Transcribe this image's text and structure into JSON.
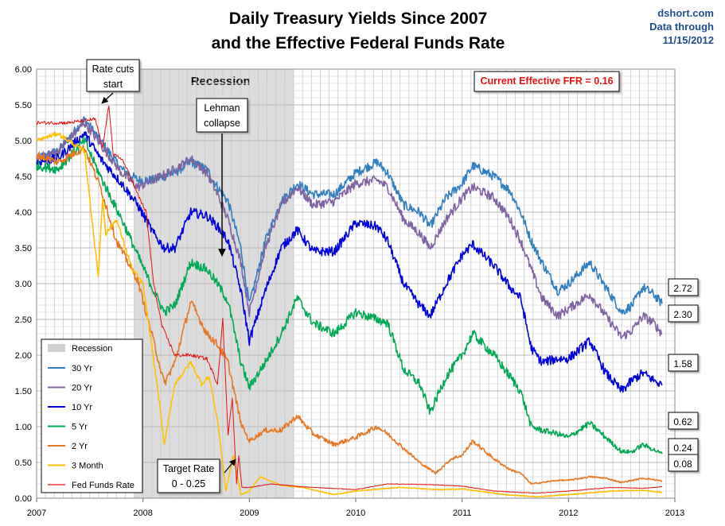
{
  "chart_data": {
    "type": "line",
    "title_line1": "Daily Treasury Yields Since 2007",
    "title_line2": "and the Effective Federal Funds Rate",
    "source": "dshort.com",
    "data_through_label": "Data through",
    "data_through_date": "11/15/2012",
    "xlim": [
      2007,
      2013
    ],
    "ylim": [
      0,
      6
    ],
    "x_ticks": [
      "2007",
      "2008",
      "2009",
      "2010",
      "2011",
      "2012",
      "2013"
    ],
    "y_ticks": [
      "0.00",
      "0.50",
      "1.00",
      "1.50",
      "2.00",
      "2.50",
      "3.00",
      "3.50",
      "4.00",
      "4.50",
      "5.00",
      "5.50",
      "6.00"
    ],
    "grid": true,
    "recession": {
      "label": "Recession",
      "start": 2007.92,
      "end": 2009.42
    },
    "legend": {
      "placement": "bottom-left",
      "recession_label": "Recession"
    },
    "series": [
      {
        "name": "30 Yr",
        "color": "#2f7fc1",
        "last": "2.72",
        "x": [
          2007.0,
          2007.2,
          2007.45,
          2007.6,
          2007.8,
          2007.95,
          2008.1,
          2008.3,
          2008.45,
          2008.6,
          2008.7,
          2008.8,
          2008.92,
          2009.0,
          2009.15,
          2009.3,
          2009.45,
          2009.6,
          2009.8,
          2010.0,
          2010.2,
          2010.3,
          2010.45,
          2010.6,
          2010.7,
          2010.85,
          2011.0,
          2011.1,
          2011.3,
          2011.45,
          2011.55,
          2011.65,
          2011.75,
          2011.9,
          2012.0,
          2012.2,
          2012.35,
          2012.5,
          2012.6,
          2012.7,
          2012.8,
          2012.88
        ],
        "y": [
          4.75,
          4.85,
          5.3,
          5.0,
          4.6,
          4.45,
          4.45,
          4.55,
          4.7,
          4.6,
          4.35,
          4.15,
          3.5,
          2.7,
          3.6,
          4.15,
          4.4,
          4.25,
          4.25,
          4.55,
          4.7,
          4.55,
          4.1,
          4.0,
          3.8,
          4.2,
          4.4,
          4.65,
          4.5,
          4.3,
          4.0,
          3.6,
          3.3,
          2.9,
          3.0,
          3.3,
          2.95,
          2.6,
          2.7,
          2.95,
          2.85,
          2.72
        ]
      },
      {
        "name": "20 Yr",
        "color": "#8064a2",
        "last": "2.30",
        "x": [
          2007.0,
          2007.2,
          2007.45,
          2007.6,
          2007.8,
          2007.95,
          2008.1,
          2008.3,
          2008.45,
          2008.6,
          2008.7,
          2008.8,
          2008.92,
          2009.0,
          2009.15,
          2009.3,
          2009.45,
          2009.6,
          2009.8,
          2010.0,
          2010.2,
          2010.3,
          2010.45,
          2010.6,
          2010.7,
          2010.85,
          2011.0,
          2011.1,
          2011.3,
          2011.45,
          2011.55,
          2011.65,
          2011.75,
          2011.9,
          2012.0,
          2012.2,
          2012.35,
          2012.5,
          2012.6,
          2012.7,
          2012.8,
          2012.88
        ],
        "y": [
          4.75,
          4.85,
          5.25,
          4.95,
          4.55,
          4.35,
          4.45,
          4.6,
          4.75,
          4.55,
          4.25,
          3.9,
          3.3,
          2.6,
          3.5,
          4.1,
          4.35,
          4.1,
          4.15,
          4.4,
          4.45,
          4.35,
          3.9,
          3.7,
          3.5,
          3.9,
          4.2,
          4.35,
          4.2,
          3.9,
          3.6,
          3.2,
          2.8,
          2.55,
          2.65,
          2.85,
          2.55,
          2.25,
          2.35,
          2.55,
          2.45,
          2.3
        ]
      },
      {
        "name": "10 Yr",
        "color": "#0000dd",
        "last": "1.58",
        "x": [
          2007.0,
          2007.2,
          2007.45,
          2007.6,
          2007.8,
          2007.95,
          2008.1,
          2008.2,
          2008.3,
          2008.45,
          2008.6,
          2008.7,
          2008.8,
          2008.92,
          2009.0,
          2009.15,
          2009.3,
          2009.45,
          2009.6,
          2009.8,
          2010.0,
          2010.2,
          2010.3,
          2010.45,
          2010.6,
          2010.7,
          2010.85,
          2011.0,
          2011.1,
          2011.3,
          2011.45,
          2011.55,
          2011.65,
          2011.75,
          2011.9,
          2012.0,
          2012.2,
          2012.35,
          2012.5,
          2012.6,
          2012.7,
          2012.8,
          2012.88
        ],
        "y": [
          4.7,
          4.75,
          5.1,
          4.75,
          4.4,
          4.1,
          3.7,
          3.5,
          3.5,
          4.0,
          3.95,
          3.8,
          3.6,
          2.9,
          2.2,
          2.9,
          3.5,
          3.75,
          3.45,
          3.45,
          3.85,
          3.8,
          3.6,
          3.0,
          2.7,
          2.55,
          3.0,
          3.4,
          3.55,
          3.25,
          2.95,
          2.8,
          2.1,
          1.9,
          1.95,
          1.95,
          2.2,
          1.75,
          1.5,
          1.65,
          1.75,
          1.65,
          1.58
        ]
      },
      {
        "name": "5 Yr",
        "color": "#00aa55",
        "last": "0.62",
        "x": [
          2007.0,
          2007.2,
          2007.45,
          2007.6,
          2007.8,
          2007.95,
          2008.1,
          2008.2,
          2008.3,
          2008.45,
          2008.6,
          2008.7,
          2008.8,
          2008.92,
          2009.0,
          2009.15,
          2009.3,
          2009.45,
          2009.6,
          2009.8,
          2010.0,
          2010.2,
          2010.3,
          2010.45,
          2010.6,
          2010.7,
          2010.85,
          2011.0,
          2011.1,
          2011.3,
          2011.45,
          2011.55,
          2011.65,
          2011.75,
          2011.9,
          2012.0,
          2012.2,
          2012.35,
          2012.5,
          2012.6,
          2012.7,
          2012.8,
          2012.88
        ],
        "y": [
          4.65,
          4.6,
          5.0,
          4.5,
          3.9,
          3.4,
          2.9,
          2.6,
          2.7,
          3.3,
          3.2,
          3.0,
          2.75,
          1.9,
          1.55,
          1.9,
          2.3,
          2.8,
          2.45,
          2.3,
          2.6,
          2.5,
          2.45,
          1.8,
          1.6,
          1.2,
          1.7,
          2.0,
          2.3,
          2.0,
          1.7,
          1.5,
          1.0,
          0.95,
          0.9,
          0.85,
          1.05,
          0.85,
          0.65,
          0.65,
          0.75,
          0.68,
          0.62
        ]
      },
      {
        "name": "2 Yr",
        "color": "#e87722",
        "last": "0.24",
        "x": [
          2007.0,
          2007.2,
          2007.45,
          2007.6,
          2007.75,
          2007.95,
          2008.1,
          2008.2,
          2008.3,
          2008.45,
          2008.6,
          2008.7,
          2008.8,
          2008.92,
          2009.0,
          2009.15,
          2009.3,
          2009.45,
          2009.6,
          2009.8,
          2010.0,
          2010.2,
          2010.3,
          2010.45,
          2010.6,
          2010.75,
          2010.9,
          2011.0,
          2011.1,
          2011.3,
          2011.45,
          2011.55,
          2011.65,
          2011.75,
          2011.9,
          2012.0,
          2012.2,
          2012.35,
          2012.5,
          2012.6,
          2012.7,
          2012.8,
          2012.88
        ],
        "y": [
          4.8,
          4.7,
          4.9,
          4.35,
          3.6,
          3.05,
          2.2,
          1.6,
          1.9,
          2.75,
          2.3,
          2.15,
          1.9,
          1.05,
          0.8,
          0.95,
          0.95,
          1.15,
          0.9,
          0.75,
          0.85,
          1.0,
          0.9,
          0.7,
          0.5,
          0.35,
          0.55,
          0.6,
          0.8,
          0.55,
          0.4,
          0.35,
          0.2,
          0.22,
          0.25,
          0.25,
          0.3,
          0.28,
          0.22,
          0.25,
          0.28,
          0.26,
          0.24
        ]
      },
      {
        "name": "3 Month",
        "color": "#ffc000",
        "last": "0.08",
        "x": [
          2007.0,
          2007.2,
          2007.45,
          2007.58,
          2007.62,
          2007.65,
          2007.75,
          2007.9,
          2008.0,
          2008.15,
          2008.2,
          2008.3,
          2008.45,
          2008.55,
          2008.62,
          2008.7,
          2008.78,
          2008.85,
          2008.92,
          2009.0,
          2009.1,
          2009.3,
          2009.5,
          2009.8,
          2010.0,
          2010.4,
          2010.8,
          2011.0,
          2011.4,
          2011.7,
          2012.0,
          2012.4,
          2012.7,
          2012.88
        ],
        "y": [
          5.0,
          5.1,
          4.85,
          3.1,
          4.2,
          3.7,
          3.9,
          3.2,
          3.0,
          1.4,
          0.75,
          1.6,
          1.9,
          1.6,
          1.7,
          1.1,
          0.1,
          0.6,
          0.05,
          0.1,
          0.3,
          0.18,
          0.15,
          0.05,
          0.1,
          0.15,
          0.12,
          0.13,
          0.05,
          0.02,
          0.05,
          0.1,
          0.11,
          0.08
        ]
      },
      {
        "name": "Fed Funds Rate",
        "color": "#e81010",
        "last": "0.16",
        "x": [
          2007.0,
          2007.3,
          2007.55,
          2007.62,
          2007.68,
          2007.72,
          2007.8,
          2007.88,
          2007.95,
          2008.03,
          2008.1,
          2008.18,
          2008.3,
          2008.45,
          2008.6,
          2008.7,
          2008.75,
          2008.8,
          2008.84,
          2008.88,
          2008.9,
          2008.93,
          2009.0,
          2009.2,
          2009.5,
          2010.0,
          2010.3,
          2010.7,
          2011.0,
          2011.3,
          2011.55,
          2011.7,
          2012.0,
          2012.4,
          2012.7,
          2012.88
        ],
        "y": [
          5.25,
          5.25,
          5.3,
          4.9,
          5.5,
          4.8,
          4.75,
          4.5,
          4.25,
          4.0,
          3.0,
          2.4,
          2.0,
          2.0,
          1.95,
          1.6,
          2.5,
          0.9,
          1.4,
          0.2,
          0.6,
          0.15,
          0.15,
          0.2,
          0.16,
          0.12,
          0.2,
          0.19,
          0.17,
          0.1,
          0.08,
          0.07,
          0.1,
          0.15,
          0.14,
          0.16
        ]
      }
    ],
    "annotations": {
      "rate_cuts": "Rate cuts\nstart",
      "lehman": "Lehman\ncollapse",
      "target_rate": "Target Rate\n0 - 0.25",
      "current_ffr": "Current Effective FFR = 0.16"
    }
  }
}
